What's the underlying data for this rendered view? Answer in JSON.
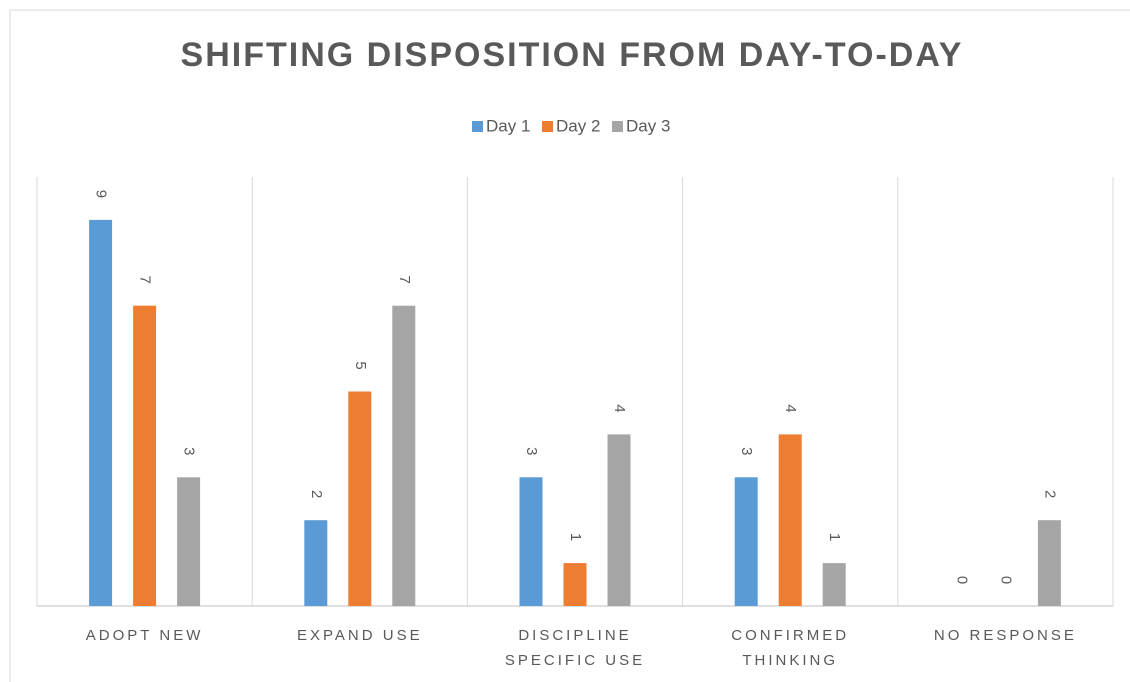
{
  "chart_data": {
    "type": "bar",
    "title": "SHIFTING DISPOSITION FROM DAY-TO-DAY",
    "categories": [
      "ADOPT NEW",
      "EXPAND USE",
      "DISCIPLINE SPECIFIC USE",
      "CONFIRMED THINKING",
      "NO RESPONSE"
    ],
    "series": [
      {
        "name": "Day 1",
        "color": "#5b9bd5",
        "values": [
          9,
          2,
          3,
          3,
          0
        ]
      },
      {
        "name": "Day 2",
        "color": "#ed7d31",
        "values": [
          7,
          5,
          1,
          4,
          0
        ]
      },
      {
        "name": "Day 3",
        "color": "#a5a5a5",
        "values": [
          3,
          7,
          4,
          1,
          2
        ]
      }
    ],
    "ylim": [
      0,
      10
    ],
    "legend": "top"
  }
}
